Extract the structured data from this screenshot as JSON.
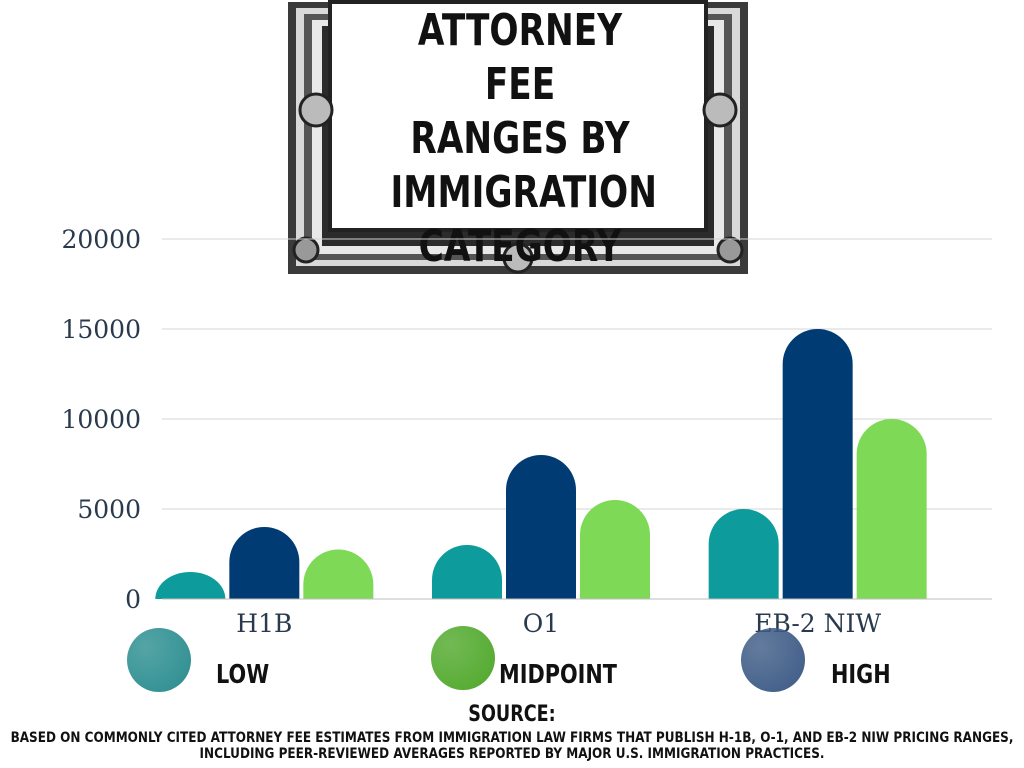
{
  "chart_data": {
    "type": "bar",
    "title": "ATTORNEY FEE\nRANGES BY\nIMMIGRATION\nCATEGORY",
    "categories": [
      "H1B",
      "O1",
      "EB-2 NIW"
    ],
    "series": [
      {
        "name": "LOW",
        "values": [
          1500,
          3000,
          5000
        ],
        "color": "#0e9b9b"
      },
      {
        "name": "HIGH",
        "values": [
          4000,
          8000,
          15000
        ],
        "color": "#003c73"
      },
      {
        "name": "MIDPOINT",
        "values": [
          2750,
          5500,
          10000
        ],
        "color": "#7ed957"
      }
    ],
    "yticks": [
      "0",
      "5000",
      "10000",
      "15000",
      "20000"
    ],
    "ylim": [
      0,
      20000
    ],
    "grid": true
  },
  "legend": [
    {
      "label": "LOW",
      "color": "#2a8d8f"
    },
    {
      "label": "MIDPOINT",
      "color": "#4fa82a"
    },
    {
      "label": "HIGH",
      "color": "#3c5a85"
    }
  ],
  "source": {
    "title": "SOURCE:",
    "text": "BASED ON COMMONLY CITED ATTORNEY FEE ESTIMATES FROM IMMIGRATION LAW FIRMS THAT PUBLISH H-1B, O-1, AND EB-2 NIW PRICING RANGES, INCLUDING PEER-REVIEWED AVERAGES REPORTED BY MAJOR U.S. IMMIGRATION PRACTICES."
  }
}
